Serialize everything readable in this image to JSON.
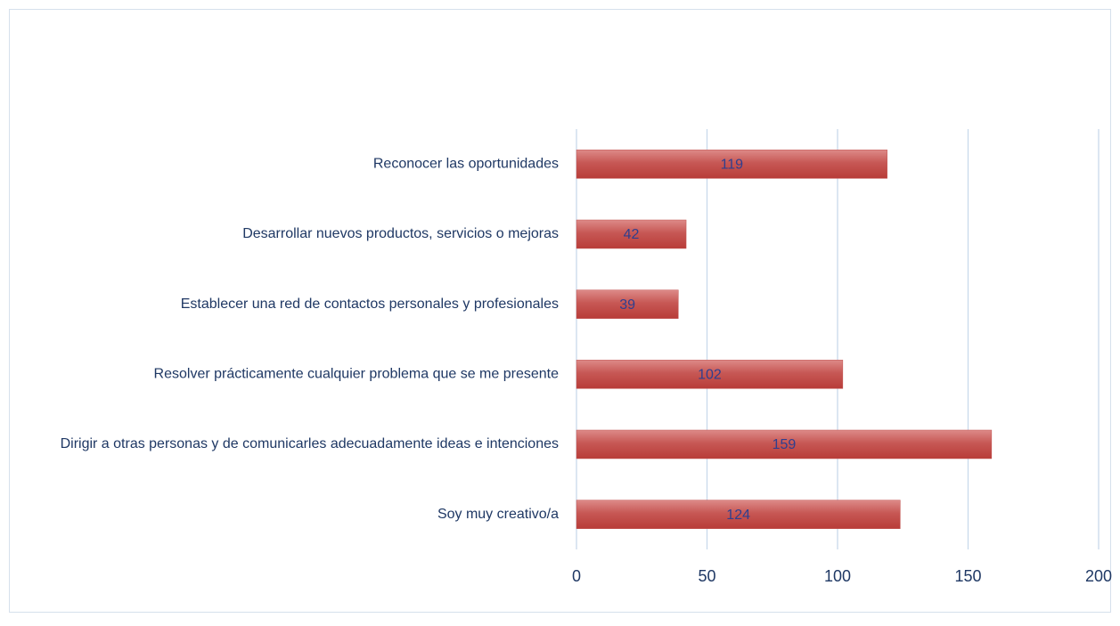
{
  "chart_data": {
    "type": "barh",
    "categories": [
      "Reconocer las oportunidades",
      "Desarrollar nuevos productos, servicios o mejoras",
      "Establecer una red de contactos personales y profesionales",
      "Resolver prácticamente cualquier problema que se me presente",
      "Dirigir a otras personas y de comunicarles adecuadamente ideas e intenciones",
      "Soy muy creativo/a"
    ],
    "values": [
      119,
      42,
      39,
      102,
      159,
      124
    ],
    "color": "#c0504d",
    "xlim": [
      0,
      200
    ],
    "xticks": [
      0,
      50,
      100,
      150,
      200
    ],
    "grid": true
  }
}
